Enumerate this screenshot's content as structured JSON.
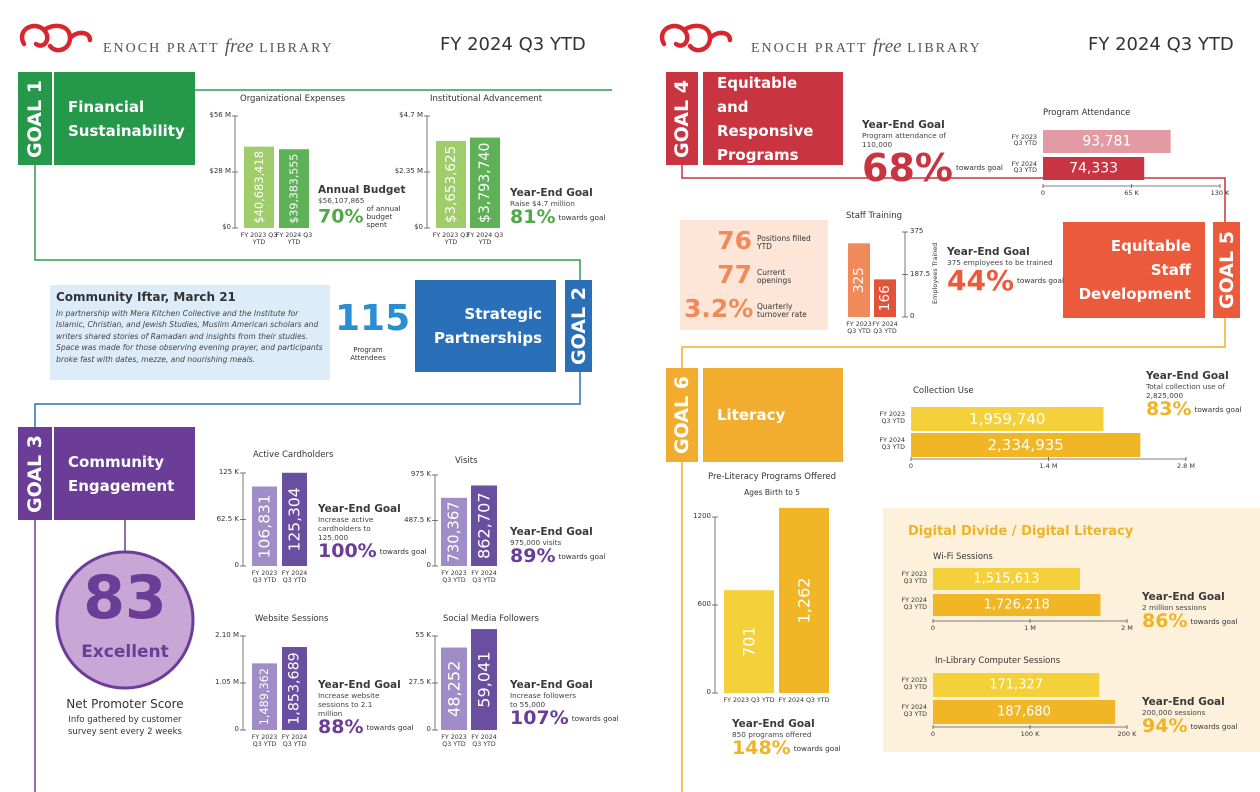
{
  "headers": [
    {
      "brand": "ENOCH PRATT",
      "brand_italic": "free",
      "brand_end": "LIBRARY",
      "period": "FY 2024 Q3 YTD"
    },
    {
      "brand": "ENOCH PRATT",
      "brand_italic": "free",
      "brand_end": "LIBRARY",
      "period": "FY 2024 Q3 YTD"
    }
  ],
  "goal1": {
    "tag": "GOAL 1",
    "title": "Financial Sustainability",
    "charts": [
      {
        "type": "bar",
        "title": "Organizational Expenses",
        "categories": [
          "FY 2023 Q3 YTD",
          "FY 2024 Q3 YTD"
        ],
        "values": [
          40683418,
          39383555
        ],
        "value_labels": [
          "$40,683,418",
          "$39,383,555"
        ],
        "colors": [
          "#9fcd6a",
          "#5fb158"
        ],
        "ylim": [
          0,
          56000000
        ],
        "yticks": [
          {
            "value": 0,
            "label": "$0"
          },
          {
            "value": 28000000,
            "label": "$28 M"
          },
          {
            "value": 56000000,
            "label": "$56 M"
          }
        ],
        "goal": {
          "label": "Annual Budget",
          "text": "$56,107,865",
          "percent": "70%",
          "note": "of annual budget spent"
        }
      },
      {
        "type": "bar",
        "title": "Institutional Advancement",
        "categories": [
          "FY 2023 Q3 YTD",
          "FY 2024 Q3 YTD"
        ],
        "values": [
          3653625,
          3793740
        ],
        "value_labels": [
          "$3,653,625",
          "$3,793,740"
        ],
        "colors": [
          "#9fcd6a",
          "#5fb158"
        ],
        "ylim": [
          0,
          4700000
        ],
        "yticks": [
          {
            "value": 0,
            "label": "$0"
          },
          {
            "value": 2350000,
            "label": "$2.35 M"
          },
          {
            "value": 4700000,
            "label": "$4.7 M"
          }
        ],
        "goal": {
          "label": "Year-End Goal",
          "text": "Raise $4.7 million",
          "percent": "81%",
          "note": "towards goal"
        }
      }
    ]
  },
  "goal2": {
    "tag": "GOAL 2",
    "title": "Strategic Partnerships",
    "story": {
      "title": "Community Iftar, March 21",
      "text": "In partnership with Mera Kitchen Collective and the Institute for Islamic, Christian, and Jewish Studies, Muslim American scholars and writers shared stories  of Ramadan and insights from their studies. Space was made for those observing evening prayer, and participants broke fast with dates, mezze, and nourishing meals."
    },
    "stat": {
      "value": "115",
      "label": "Program Attendees"
    }
  },
  "goal3": {
    "tag": "GOAL 3",
    "title": "Community Engagement",
    "nps": {
      "score": "83",
      "rating": "Excellent",
      "label": "Net Promoter Score",
      "note": "Info gathered by customer survey sent every 2 weeks"
    },
    "charts": [
      {
        "type": "bar",
        "title": "Active Cardholders",
        "categories": [
          "FY 2023 Q3 YTD",
          "FY 2024 Q3 YTD"
        ],
        "values": [
          106831,
          125304
        ],
        "value_labels": [
          "106,831",
          "125,304"
        ],
        "colors": [
          "#a08cc6",
          "#6a4e9f"
        ],
        "ylim": [
          0,
          125000
        ],
        "yticks": [
          0,
          {
            "value": 62500,
            "label": "62.5 K"
          },
          {
            "value": 125000,
            "label": "125 K"
          }
        ],
        "goal": {
          "label": "Year-End Goal",
          "text": "Increase active cardholders to 125,000",
          "percent": "100%",
          "note": "towards goal"
        }
      },
      {
        "type": "bar",
        "title": "Visits",
        "categories": [
          "FY 2023 Q3 YTD",
          "FY 2024 Q3 YTD"
        ],
        "values": [
          730367,
          862707
        ],
        "value_labels": [
          "730,367",
          "862,707"
        ],
        "colors": [
          "#a08cc6",
          "#6a4e9f"
        ],
        "ylim": [
          0,
          975000
        ],
        "yticks": [
          0,
          {
            "value": 487500,
            "label": "487.5 K"
          },
          {
            "value": 975000,
            "label": "975 K"
          }
        ],
        "goal": {
          "label": "Year-End Goal",
          "text": "975,000 visits",
          "percent": "89%",
          "note": "towards goal"
        }
      },
      {
        "type": "bar",
        "title": "Website Sessions",
        "categories": [
          "FY 2023 Q3 YTD",
          "FY 2024 Q3 YTD"
        ],
        "values": [
          1489362,
          1853689
        ],
        "value_labels": [
          "1,489,362",
          "1,853,689"
        ],
        "colors": [
          "#a08cc6",
          "#6a4e9f"
        ],
        "ylim": [
          0,
          2100000
        ],
        "yticks": [
          0,
          {
            "value": 1050000,
            "label": "1.05 M"
          },
          {
            "value": 2100000,
            "label": "2.10 M"
          }
        ],
        "goal": {
          "label": "Year-End Goal",
          "text": "Increase website sessions to 2.1 million",
          "percent": "88%",
          "note": "towards goal"
        }
      },
      {
        "type": "bar",
        "title": "Social Media Followers",
        "categories": [
          "FY 2023 Q3 YTD",
          "FY 2024 Q3 YTD"
        ],
        "values": [
          48252,
          59041
        ],
        "value_labels": [
          "48,252",
          "59,041"
        ],
        "colors": [
          "#a08cc6",
          "#6a4e9f"
        ],
        "ylim": [
          0,
          55000
        ],
        "yticks": [
          0,
          {
            "value": 27500,
            "label": "27.5 K"
          },
          {
            "value": 55000,
            "label": "55 K"
          }
        ],
        "goal": {
          "label": "Year-End Goal",
          "text": "Increase followers to 55,000",
          "percent": "107%",
          "note": "towards goal"
        }
      }
    ]
  },
  "goal4": {
    "tag": "GOAL 4",
    "title": "Equitable and Responsive Programs",
    "charts": [
      {
        "type": "hbar",
        "title": "Program Attendance",
        "categories": [
          "FY 2023 Q3 YTD",
          "FY 2024 Q3 YTD"
        ],
        "values": [
          93781,
          74333
        ],
        "value_labels": [
          "93,781",
          "74,333"
        ],
        "colors": [
          "#e39ba3",
          "#c8343f"
        ],
        "xlim": [
          0,
          130000
        ],
        "xticks": [
          0,
          {
            "value": 65000,
            "label": "65 K"
          },
          {
            "value": 130000,
            "label": "130 K"
          }
        ],
        "goal": {
          "label": "Year-End Goal",
          "text": "Program attendance of 110,000",
          "percent": "68%",
          "note": "towards goal"
        }
      }
    ]
  },
  "goal5": {
    "tag": "GOAL 5",
    "title": "Equitable Staff Development",
    "stats": [
      {
        "value": "76",
        "label": "Positions filled YTD"
      },
      {
        "value": "77",
        "label": "Current openings"
      },
      {
        "value": "3.2%",
        "label": "Quarterly turnover rate"
      }
    ],
    "charts": [
      {
        "type": "bar",
        "title": "Staff Training",
        "ylabel": "Employees Trained",
        "axis_side": "right",
        "categories": [
          "FY 2023 Q3 YTD",
          "FY 2024 Q3 YTD"
        ],
        "values": [
          325,
          166
        ],
        "colors": [
          "#f08a5a",
          "#e2533a"
        ],
        "ylim": [
          0,
          375
        ],
        "yticks": [
          0,
          187.5,
          375
        ],
        "goal": {
          "label": "Year-End Goal",
          "text": "375 employees to be trained",
          "percent": "44%",
          "note": "towards goal"
        }
      }
    ]
  },
  "goal6": {
    "tag": "GOAL 6",
    "title": "Literacy",
    "charts": [
      {
        "type": "hbar",
        "title": "Collection Use",
        "categories": [
          "FY 2023 Q3 YTD",
          "FY 2024 Q3 YTD"
        ],
        "values": [
          1959740,
          2334935
        ],
        "value_labels": [
          "1,959,740",
          "2,334,935"
        ],
        "colors": [
          "#f4d03b",
          "#f1b625"
        ],
        "xlim": [
          0,
          2800000
        ],
        "xticks": [
          0,
          {
            "value": 1400000,
            "label": "1.4 M"
          },
          {
            "value": 2800000,
            "label": "2.8 M"
          }
        ],
        "goal": {
          "label": "Year-End Goal",
          "text": "Total collection use of 2,825,000",
          "percent": "83%",
          "note": "towards goal"
        }
      },
      {
        "type": "bar",
        "title": "Pre-Literacy Programs Offered",
        "subtitle": "Ages Birth to 5",
        "categories": [
          "FY 2023 Q3 YTD",
          "FY 2024 Q3 YTD"
        ],
        "values": [
          701,
          1262
        ],
        "value_labels": [
          "701",
          "1,262"
        ],
        "colors": [
          "#f4d03b",
          "#f1b625"
        ],
        "ylim": [
          0,
          1200
        ],
        "yticks": [
          0,
          600,
          1200
        ],
        "goal": {
          "label": "Year-End Goal",
          "text": "850 programs offered",
          "percent": "148%",
          "note": "towards goal"
        }
      }
    ],
    "digital": {
      "title": "Digital Divide / Digital Literacy",
      "charts": [
        {
          "type": "hbar",
          "title": "Wi-Fi Sessions",
          "categories": [
            "FY 2023 Q3 YTD",
            "FY 2024 Q3 YTD"
          ],
          "values": [
            1515613,
            1726218
          ],
          "value_labels": [
            "1,515,613",
            "1,726,218"
          ],
          "colors": [
            "#f4d03b",
            "#f1b625"
          ],
          "xlim": [
            0,
            2000000
          ],
          "xticks": [
            0,
            {
              "value": 1000000,
              "label": "1 M"
            },
            {
              "value": 2000000,
              "label": "2 M"
            }
          ],
          "goal": {
            "label": "Year-End Goal",
            "text": "2 million sessions",
            "percent": "86%",
            "note": "towards goal"
          }
        },
        {
          "type": "hbar",
          "title": "In-Library Computer Sessions",
          "categories": [
            "FY 2023 Q3 YTD",
            "FY 2024 Q3 YTD"
          ],
          "values": [
            171327,
            187680
          ],
          "value_labels": [
            "171,327",
            "187,680"
          ],
          "colors": [
            "#f4d03b",
            "#f1b625"
          ],
          "xlim": [
            0,
            200000
          ],
          "xticks": [
            0,
            {
              "value": 100000,
              "label": "100 K"
            },
            {
              "value": 200000,
              "label": "200 K"
            }
          ],
          "goal": {
            "label": "Year-End Goal",
            "text": "200,000 sessions",
            "percent": "94%",
            "note": "towards goal"
          }
        }
      ]
    }
  }
}
